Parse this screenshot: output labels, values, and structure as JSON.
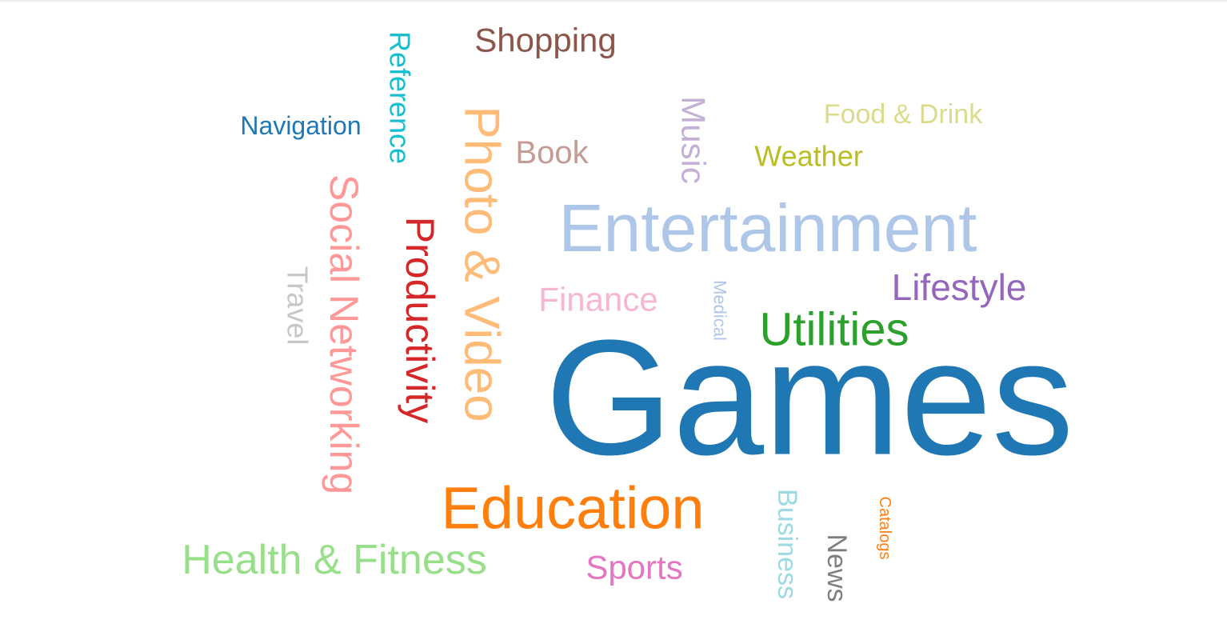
{
  "chart_data": {
    "type": "wordcloud",
    "title": "",
    "words": [
      {
        "text": "Games",
        "color": "#1f77b4"
      },
      {
        "text": "Entertainment",
        "color": "#aec7e8"
      },
      {
        "text": "Photo & Video",
        "color": "#ffbb78"
      },
      {
        "text": "Education",
        "color": "#ff7f0e"
      },
      {
        "text": "Social Networking",
        "color": "#ff9896"
      },
      {
        "text": "Health & Fitness",
        "color": "#98df8a"
      },
      {
        "text": "Productivity",
        "color": "#d62728"
      },
      {
        "text": "Utilities",
        "color": "#2ca02c"
      },
      {
        "text": "Lifestyle",
        "color": "#9467bd"
      },
      {
        "text": "Shopping",
        "color": "#8c564b"
      },
      {
        "text": "Finance",
        "color": "#f7b6d2"
      },
      {
        "text": "Music",
        "color": "#c5b0d5"
      },
      {
        "text": "Sports",
        "color": "#e377c2"
      },
      {
        "text": "Book",
        "color": "#c49c94"
      },
      {
        "text": "Reference",
        "color": "#17becf"
      },
      {
        "text": "Weather",
        "color": "#bcbd22"
      },
      {
        "text": "Food & Drink",
        "color": "#dbdb8d"
      },
      {
        "text": "Travel",
        "color": "#c7c7c7"
      },
      {
        "text": "Business",
        "color": "#9edae5"
      },
      {
        "text": "Navigation",
        "color": "#1f77b4"
      },
      {
        "text": "News",
        "color": "#7f7f7f"
      },
      {
        "text": "Medical",
        "color": "#aec7e8"
      },
      {
        "text": "Catalogs",
        "color": "#ff7f0e"
      }
    ]
  }
}
